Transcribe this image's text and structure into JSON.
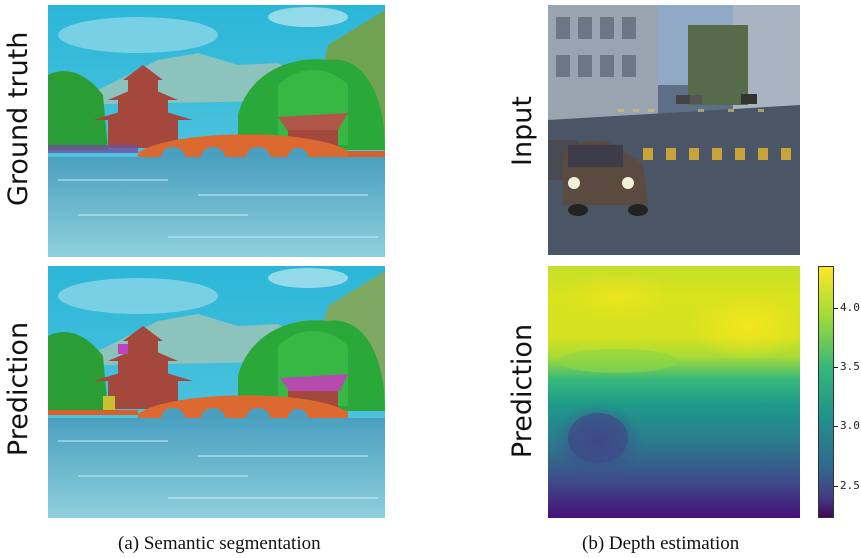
{
  "left": {
    "row1_label": "Ground truth",
    "row2_label": "Prediction",
    "caption": "(a)  Semantic segmentation"
  },
  "right": {
    "row1_label": "Input",
    "row2_label": "Prediction",
    "caption": "(b)  Depth estimation"
  },
  "colorbar": {
    "ticks": [
      "4.0",
      "3.5",
      "3.0",
      "2.5"
    ],
    "colormap": "viridis",
    "range": [
      2.25,
      4.35
    ]
  },
  "colors": {
    "sky": "#2fb8d6",
    "mountain": "#8fc8c0",
    "trees": "#2aa33a",
    "pagoda": "#a0463c",
    "bridge": "#d9602a",
    "water": "#5aa7c4"
  }
}
